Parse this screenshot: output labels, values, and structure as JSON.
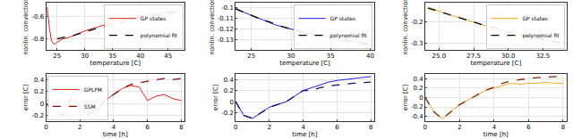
{
  "chart_data": [
    {
      "type": "line",
      "xlabel": "temperature [C]",
      "ylabel": "nonlin. convection",
      "xlim": [
        23,
        48
      ],
      "ylim": [
        -0.9,
        -0.48
      ],
      "xticks": [
        25,
        30,
        35,
        40,
        45
      ],
      "yticks": [
        -0.8,
        -0.6
      ],
      "grid": true,
      "legend": "upper right",
      "series": [
        {
          "name": "GP states",
          "color": "#e8241c",
          "line_style": "solid",
          "x": [
            23.2,
            23.6,
            24,
            24.5,
            25,
            26,
            27,
            28,
            30,
            32,
            34,
            36,
            38,
            40,
            42,
            44,
            46,
            47
          ],
          "values": [
            -0.52,
            -0.7,
            -0.82,
            -0.85,
            -0.83,
            -0.8,
            -0.79,
            -0.77,
            -0.73,
            -0.7,
            -0.67,
            -0.64,
            -0.62,
            -0.6,
            -0.58,
            -0.57,
            -0.56,
            -0.55
          ]
        },
        {
          "name": "polynomial fit",
          "color": "#000000",
          "line_style": "dash",
          "x": [
            25,
            28,
            32,
            36,
            40,
            44,
            47
          ],
          "values": [
            -0.8,
            -0.77,
            -0.71,
            -0.66,
            -0.61,
            -0.58,
            -0.56
          ]
        }
      ]
    },
    {
      "type": "line",
      "xlabel": "temperature [C]",
      "ylabel": "nonlin. convection",
      "xlim": [
        23,
        40.5
      ],
      "ylim": [
        -0.14,
        -0.095
      ],
      "xticks": [
        25,
        30,
        35,
        40
      ],
      "yticks": [
        -0.13,
        -0.12,
        -0.11,
        -0.1
      ],
      "grid": true,
      "legend": "upper right",
      "series": [
        {
          "name": "GP states",
          "color": "#1f1fe0",
          "line_style": "solid",
          "x": [
            23,
            24,
            25,
            26,
            27,
            28,
            29,
            30,
            31,
            32,
            33,
            34,
            35,
            36,
            37,
            38,
            39,
            40
          ],
          "values": [
            -0.1,
            -0.104,
            -0.107,
            -0.11,
            -0.113,
            -0.116,
            -0.118,
            -0.12,
            -0.122,
            -0.124,
            -0.126,
            -0.127,
            -0.128,
            -0.13,
            -0.131,
            -0.132,
            -0.133,
            -0.135
          ]
        },
        {
          "name": "polynomial fit",
          "color": "#000000",
          "line_style": "dash",
          "x": [
            23,
            26,
            29,
            32,
            35,
            38,
            40
          ],
          "values": [
            -0.101,
            -0.11,
            -0.118,
            -0.124,
            -0.128,
            -0.132,
            -0.135
          ]
        }
      ]
    },
    {
      "type": "line",
      "xlabel": "temperature [C]",
      "ylabel": "nonlin. convection",
      "xlim": [
        24,
        34.2
      ],
      "ylim": [
        -0.33,
        -0.11
      ],
      "xticks": [
        {
          "value": 25,
          "label": "25.0"
        },
        27.5,
        {
          "value": 30,
          "label": "30.0"
        },
        32.5
      ],
      "yticks": [
        -0.3,
        -0.2
      ],
      "grid": true,
      "legend": "upper right",
      "series": [
        {
          "name": "GP states",
          "color": "#f5a623",
          "line_style": "solid",
          "x": [
            24.2,
            25,
            26,
            27,
            28,
            29,
            30,
            31,
            32,
            33,
            34
          ],
          "values": [
            -0.13,
            -0.15,
            -0.17,
            -0.19,
            -0.21,
            -0.23,
            -0.245,
            -0.26,
            -0.275,
            -0.29,
            -0.3
          ]
        },
        {
          "name": "polynomial fit",
          "color": "#000000",
          "line_style": "dash",
          "x": [
            24.2,
            26,
            28,
            30,
            32,
            34
          ],
          "values": [
            -0.135,
            -0.17,
            -0.21,
            -0.245,
            -0.275,
            -0.3
          ]
        }
      ]
    },
    {
      "type": "line",
      "xlabel": "time [h]",
      "ylabel": "error [C]",
      "xlim": [
        0,
        8.2
      ],
      "ylim": [
        -0.3,
        0.5
      ],
      "xticks": [
        0,
        2,
        4,
        6,
        8
      ],
      "yticks": [
        -0.2,
        0,
        0.2,
        0.4
      ],
      "grid": true,
      "legend": "upper left",
      "series": [
        {
          "name": "GPLFM",
          "color": "#e8241c",
          "line_style": "solid",
          "x": [
            0,
            0.5,
            1,
            1.5,
            2,
            2.5,
            3,
            3.5,
            4,
            4.5,
            5,
            5.5,
            6,
            6.5,
            7,
            7.5,
            8
          ],
          "values": [
            0,
            -0.15,
            -0.2,
            0.1,
            -0.05,
            -0.2,
            -0.1,
            0.05,
            0.15,
            0.25,
            0.3,
            0.28,
            0.05,
            0.12,
            0.15,
            0.08,
            0.05
          ]
        },
        {
          "name": "SSM",
          "color": "#7a1010",
          "line_style": "dash",
          "x": [
            0,
            0.5,
            1,
            1.5,
            2,
            2.5,
            3,
            3.5,
            4,
            4.5,
            5,
            5.5,
            6,
            6.5,
            7,
            7.5,
            8
          ],
          "values": [
            0,
            -0.15,
            -0.2,
            0.1,
            -0.05,
            -0.2,
            -0.1,
            0.05,
            0.15,
            0.25,
            0.32,
            0.35,
            0.38,
            0.4,
            0.42,
            0.4,
            0.42
          ]
        }
      ]
    },
    {
      "type": "line",
      "xlabel": "time [h]",
      "ylabel": "error [C]",
      "xlim": [
        0,
        8.2
      ],
      "ylim": [
        -0.35,
        0.5
      ],
      "xticks": [
        0,
        2,
        4,
        6,
        8
      ],
      "yticks": [
        -0.2,
        0,
        0.2,
        0.4
      ],
      "grid": true,
      "series": [
        {
          "color": "#1f1fe0",
          "line_style": "solid",
          "x": [
            0,
            0.5,
            1,
            1.5,
            2,
            2.5,
            3,
            3.5,
            4,
            4.5,
            5,
            5.5,
            6,
            6.5,
            7,
            7.5,
            8
          ],
          "values": [
            0,
            -0.25,
            -0.3,
            -0.2,
            -0.1,
            -0.05,
            0,
            0.1,
            0.2,
            0.25,
            0.3,
            0.35,
            0.38,
            0.4,
            0.42,
            0.43,
            0.45
          ]
        },
        {
          "color": "#10106e",
          "line_style": "dash",
          "x": [
            0,
            0.5,
            1,
            1.5,
            2,
            2.5,
            3,
            3.5,
            4,
            4.5,
            5,
            5.5,
            6,
            6.5,
            7,
            7.5,
            8
          ],
          "values": [
            0,
            -0.25,
            -0.3,
            -0.2,
            -0.1,
            -0.05,
            0,
            0.1,
            0.2,
            0.2,
            0.25,
            0.28,
            0.3,
            0.32,
            0.33,
            0.34,
            0.35
          ]
        }
      ]
    },
    {
      "type": "line",
      "xlabel": "time [h]",
      "ylabel": "error [C]",
      "xlim": [
        0,
        8.2
      ],
      "ylim": [
        -0.5,
        0.5
      ],
      "xticks": [
        0,
        2,
        4,
        6,
        8
      ],
      "yticks": [
        -0.4,
        -0.2,
        0,
        0.2,
        0.4
      ],
      "grid": true,
      "series": [
        {
          "color": "#f5a623",
          "line_style": "solid",
          "x": [
            0,
            0.5,
            1,
            1.5,
            2,
            2.5,
            3,
            3.5,
            4,
            4.5,
            5,
            5.5,
            6,
            6.5,
            7,
            7.5,
            8
          ],
          "values": [
            0,
            -0.3,
            -0.45,
            -0.3,
            -0.15,
            -0.05,
            0.05,
            0.15,
            0.2,
            0.25,
            0.3,
            0.28,
            0.3,
            0.3,
            0.32,
            0.3,
            0.3
          ]
        },
        {
          "color": "#7a2a10",
          "line_style": "dash",
          "x": [
            0,
            0.5,
            1,
            1.5,
            2,
            2.5,
            3,
            3.5,
            4,
            4.5,
            5,
            5.5,
            6,
            6.5,
            7,
            7.5,
            8
          ],
          "values": [
            0,
            -0.3,
            -0.45,
            -0.3,
            -0.15,
            -0.05,
            0.05,
            0.15,
            0.22,
            0.3,
            0.35,
            0.38,
            0.4,
            0.42,
            0.43,
            0.44,
            0.45
          ]
        }
      ]
    }
  ]
}
